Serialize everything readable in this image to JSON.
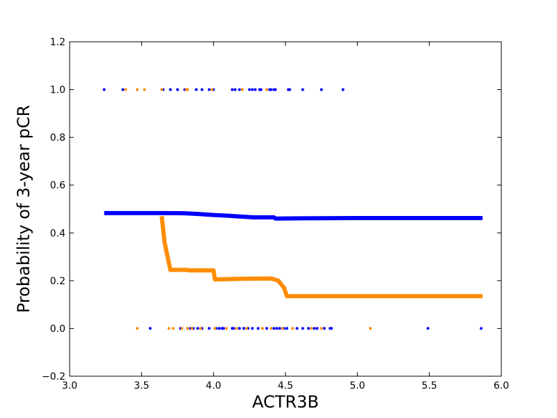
{
  "chart_data": {
    "type": "scatter",
    "xlabel": "ACTR3B",
    "ylabel": "Probability of 3-year pCR",
    "xlim": [
      3.0,
      6.0
    ],
    "ylim": [
      -0.2,
      1.2
    ],
    "xticks": [
      "3.0",
      "3.5",
      "4.0",
      "4.5",
      "5.0",
      "5.5",
      "6.0"
    ],
    "xtick_values": [
      3.0,
      3.5,
      4.0,
      4.5,
      5.0,
      5.5,
      6.0
    ],
    "yticks": [
      "−0.2",
      "0.0",
      "0.2",
      "0.4",
      "0.6",
      "0.8",
      "1.0",
      "1.2"
    ],
    "ytick_values": [
      -0.2,
      0.0,
      0.2,
      0.4,
      0.6,
      0.8,
      1.0,
      1.2
    ],
    "grid": false,
    "colors": {
      "blue": "#0000ff",
      "orange": "#ff8c00"
    },
    "points": [
      {
        "color": "blue",
        "y": 1.0,
        "x": [
          3.24,
          3.37,
          3.65,
          3.7,
          3.75,
          3.8,
          3.88,
          3.92,
          3.97,
          4.0,
          4.13,
          4.15,
          4.18,
          4.25,
          4.27,
          4.29,
          4.32,
          4.33,
          4.39,
          4.4,
          4.42,
          4.43,
          4.52,
          4.53,
          4.62,
          4.75,
          4.9
        ]
      },
      {
        "color": "orange",
        "y": 1.0,
        "x": [
          3.39,
          3.47,
          3.52,
          3.64,
          3.81,
          3.82,
          3.99,
          4.2,
          4.37
        ]
      },
      {
        "color": "blue",
        "y": 0.0,
        "x": [
          3.56,
          3.77,
          3.82,
          3.84,
          3.86,
          3.89,
          3.92,
          3.97,
          4.02,
          4.04,
          4.06,
          4.07,
          4.13,
          4.14,
          4.18,
          4.21,
          4.24,
          4.27,
          4.31,
          4.37,
          4.42,
          4.44,
          4.46,
          4.49,
          4.51,
          4.58,
          4.62,
          4.66,
          4.7,
          4.72,
          4.77,
          4.81,
          4.82,
          5.49,
          5.86
        ]
      },
      {
        "color": "orange",
        "y": 0.0,
        "x": [
          3.47,
          3.69,
          3.72,
          3.78,
          3.82,
          3.85,
          3.91,
          4.01,
          4.09,
          4.16,
          4.23,
          4.34,
          4.4,
          4.48,
          4.55,
          4.68,
          4.75,
          5.09
        ]
      }
    ],
    "series": [
      {
        "color": "blue",
        "x": [
          3.24,
          3.5,
          3.65,
          3.8,
          3.9,
          4.0,
          4.1,
          4.2,
          4.28,
          4.35,
          4.42,
          4.43,
          4.6,
          5.0,
          5.5,
          5.87
        ],
        "y": [
          0.483,
          0.483,
          0.483,
          0.482,
          0.479,
          0.475,
          0.472,
          0.468,
          0.465,
          0.465,
          0.465,
          0.46,
          0.461,
          0.462,
          0.462,
          0.462
        ]
      },
      {
        "color": "orange",
        "x": [
          3.64,
          3.66,
          3.7,
          3.82,
          3.83,
          3.98,
          4.0,
          4.01,
          4.2,
          4.4,
          4.45,
          4.49,
          4.51,
          5.87
        ],
        "y": [
          0.47,
          0.36,
          0.245,
          0.245,
          0.243,
          0.243,
          0.243,
          0.205,
          0.208,
          0.209,
          0.2,
          0.17,
          0.135,
          0.135
        ]
      }
    ]
  }
}
